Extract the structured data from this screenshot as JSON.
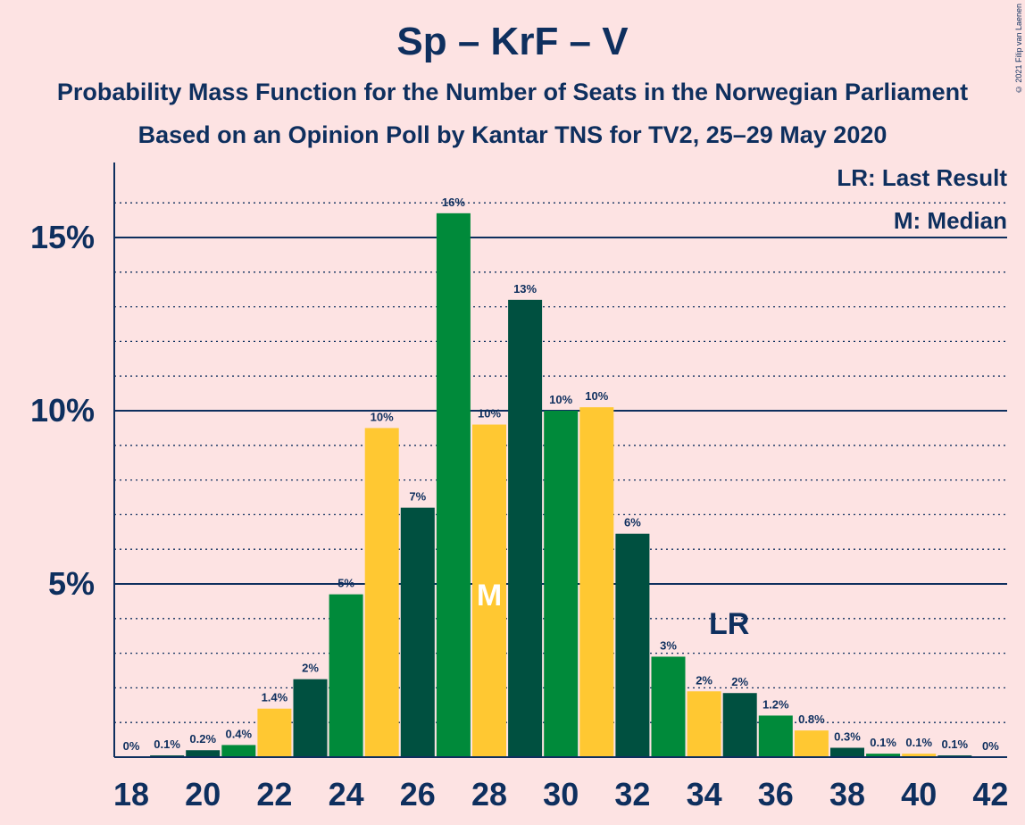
{
  "title": "Sp – KrF – V",
  "subtitle": "Probability Mass Function for the Number of Seats in the Norwegian Parliament",
  "subtitle2": "Based on an Opinion Poll by Kantar TNS for TV2, 25–29 May 2020",
  "copyright": "© 2021 Filip van Laenen",
  "legend": {
    "last_result": "LR: Last Result",
    "median": "M: Median"
  },
  "colors": {
    "background": "#fde3e3",
    "text": "#0e2f5e",
    "dark_green": "#005040",
    "green": "#008a3a",
    "yellow": "#ffc832"
  },
  "chart_data": {
    "type": "bar",
    "title": "Sp – KrF – V",
    "xlabel": "",
    "ylabel": "",
    "ylim": [
      0,
      17
    ],
    "yticks": [
      {
        "value": 5,
        "label": "5%"
      },
      {
        "value": 10,
        "label": "10%"
      },
      {
        "value": 15,
        "label": "15%"
      }
    ],
    "xticks": [
      18,
      20,
      22,
      24,
      26,
      28,
      30,
      32,
      34,
      36,
      38,
      40,
      42
    ],
    "categories": [
      18,
      19,
      20,
      21,
      22,
      23,
      24,
      25,
      26,
      27,
      28,
      29,
      30,
      31,
      32,
      33,
      34,
      35,
      36,
      37,
      38,
      39,
      40,
      41,
      42
    ],
    "values": [
      0,
      0.05,
      0.2,
      0.35,
      1.4,
      2.25,
      4.7,
      9.5,
      7.2,
      15.7,
      9.6,
      13.2,
      10.0,
      10.1,
      6.45,
      2.9,
      1.9,
      1.85,
      1.2,
      0.77,
      0.27,
      0.1,
      0.1,
      0.05,
      0
    ],
    "labels": [
      "0%",
      "0.1%",
      "0.2%",
      "0.4%",
      "1.4%",
      "2%",
      "5%",
      "10%",
      "7%",
      "16%",
      "10%",
      "13%",
      "10%",
      "10%",
      "6%",
      "3%",
      "2%",
      "2%",
      "1.2%",
      "0.8%",
      "0.3%",
      "0.1%",
      "0.1%",
      "0.1%",
      "0%"
    ],
    "bar_colors": [
      "green",
      "dark_green",
      "dark_green",
      "green",
      "yellow",
      "dark_green",
      "green",
      "yellow",
      "dark_green",
      "green",
      "yellow",
      "dark_green",
      "green",
      "yellow",
      "dark_green",
      "green",
      "yellow",
      "dark_green",
      "green",
      "yellow",
      "dark_green",
      "green",
      "yellow",
      "dark_green",
      "green"
    ],
    "median_seat": 28,
    "median_marker": "M",
    "last_result_seat": 35,
    "last_result_marker": "LR",
    "grid": true,
    "legend_position": "top-right"
  }
}
